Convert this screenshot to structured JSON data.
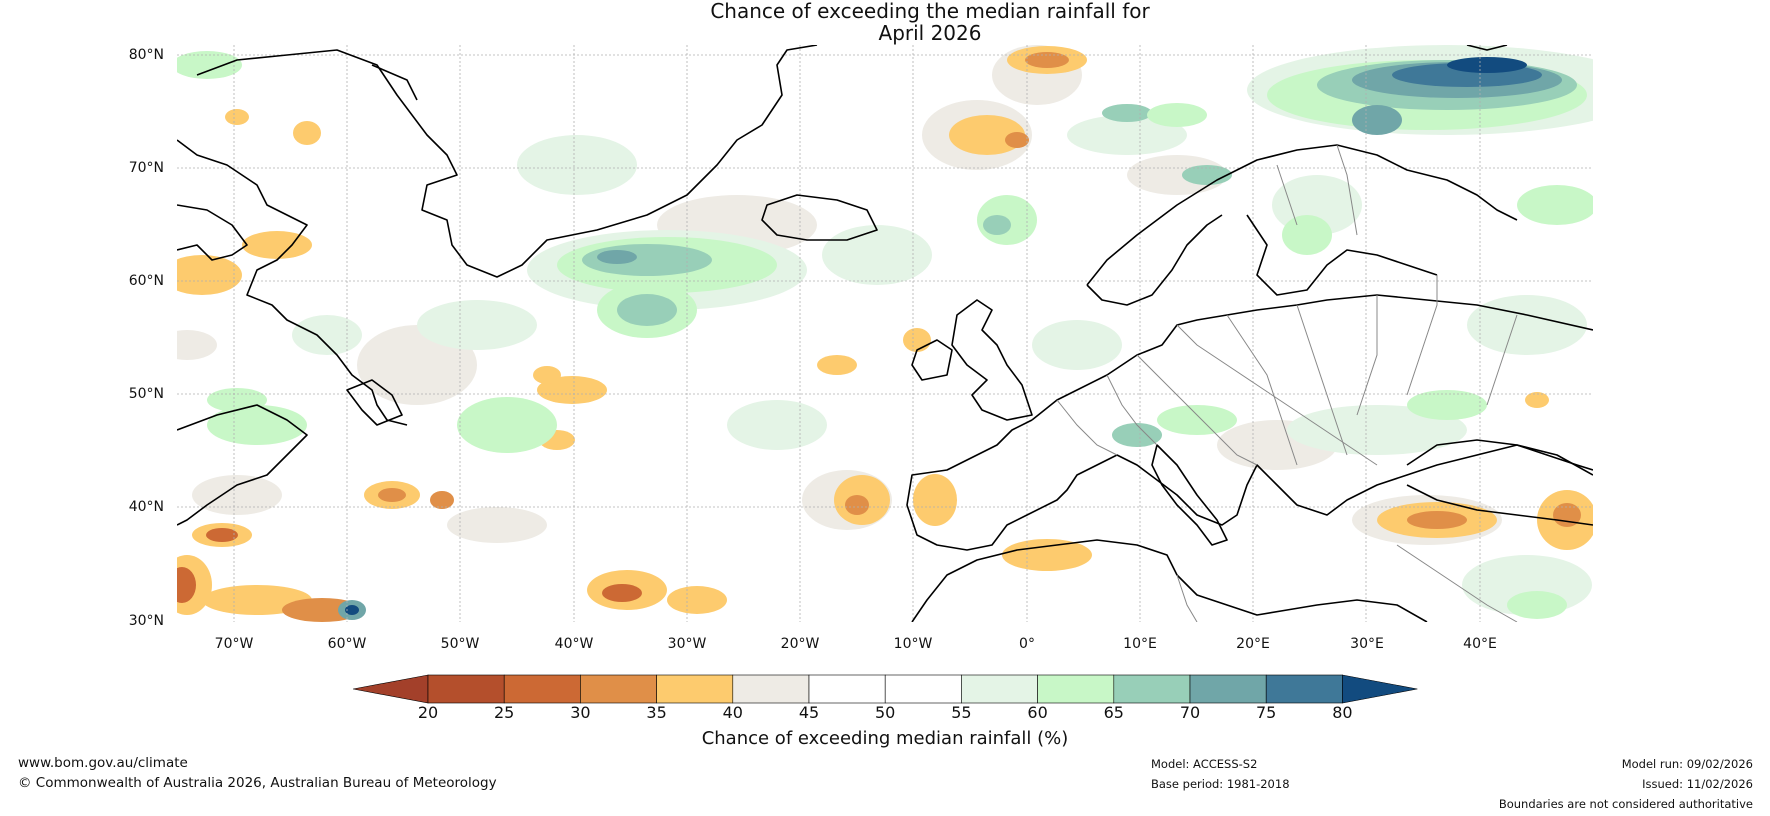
{
  "title": {
    "line1": "Chance of exceeding the median rainfall for",
    "line2": "April 2026"
  },
  "axes": {
    "lat_labels": [
      "80°N",
      "70°N",
      "60°N",
      "50°N",
      "40°N",
      "30°N"
    ],
    "lon_labels": [
      "70°W",
      "60°W",
      "50°W",
      "40°W",
      "30°W",
      "20°W",
      "10°W",
      "0°",
      "10°E",
      "20°E",
      "30°E",
      "40°E"
    ]
  },
  "colorbar": {
    "label": "Chance of exceeding median rainfall (%)",
    "ticks": [
      "20",
      "25",
      "30",
      "35",
      "40",
      "45",
      "50",
      "55",
      "60",
      "65",
      "70",
      "75",
      "80"
    ],
    "colors": [
      "#a3402a",
      "#b44f2c",
      "#cc6934",
      "#e08f48",
      "#fdcb6e",
      "#eeebe5",
      "#ffffff",
      "#ffffff",
      "#e4f4e6",
      "#c8f7c7",
      "#98cfb8",
      "#70a6a8",
      "#3f7898",
      "#124b7f"
    ]
  },
  "footer": {
    "website": "www.bom.gov.au/climate",
    "copyright": "© Commonwealth of Australia 2026, Australian Bureau of Meteorology",
    "model": "Model: ACCESS-S2",
    "base_period": "Base period: 1981-2018",
    "model_run": "Model run: 09/02/2026",
    "issued": "Issued: 11/02/2026",
    "disclaimer": "Boundaries are not considered authoritative"
  }
}
